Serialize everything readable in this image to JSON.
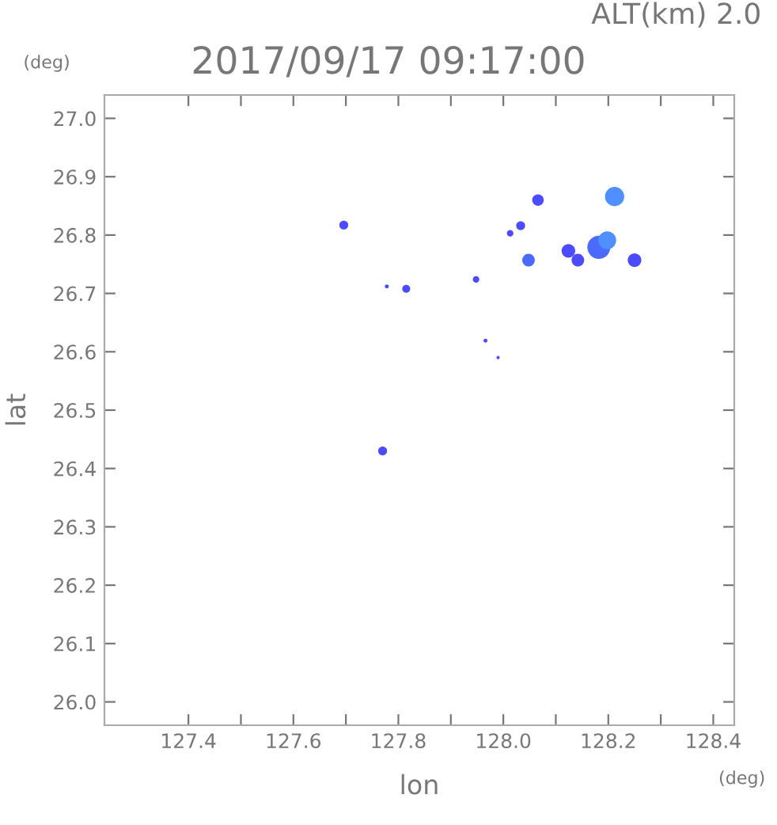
{
  "chart_data": {
    "type": "bubble",
    "title": "2017/09/17 09:17:00",
    "subtitle": "ALT(km) 2.0",
    "xlabel": "lon",
    "ylabel": "lat",
    "annotations": [
      "(deg)",
      "(deg)"
    ],
    "x": [
      127.696,
      127.778,
      127.815,
      127.948,
      127.966,
      127.99,
      128.066,
      128.033,
      128.013,
      128.048,
      128.124,
      128.142,
      128.182,
      128.198,
      128.212,
      128.25,
      127.77
    ],
    "values": [
      26.817,
      26.712,
      26.708,
      26.724,
      26.619,
      26.59,
      26.86,
      26.816,
      26.803,
      26.757,
      26.773,
      26.757,
      26.779,
      26.791,
      26.866,
      26.757,
      26.43
    ],
    "sizes": [
      0.15,
      0.03,
      0.12,
      0.08,
      0.03,
      0.02,
      0.25,
      0.15,
      0.08,
      0.3,
      0.35,
      0.3,
      1,
      0.6,
      0.7,
      0.35,
      0.15
    ],
    "colors": [
      "#4b4bff",
      "#4b4bff",
      "#4b4bff",
      "#4b4bff",
      "#4b4bff",
      "#4b4bff",
      "#4b4bff",
      "#4b4bff",
      "#4b4bff",
      "#4b6bff",
      "#4b4bff",
      "#4b4bff",
      "#4b6bff",
      "#4f8fff",
      "#4f8fff",
      "#4b4bff",
      "#4b4bff"
    ],
    "xlim": [
      127.24,
      128.44
    ],
    "ylim": [
      25.96,
      27.04
    ],
    "xticks": [
      127.4,
      {
        "value": 127.5,
        "label": null
      },
      127.6,
      {
        "value": 127.7,
        "label": null
      },
      127.8,
      {
        "value": 127.9,
        "label": null
      },
      {
        "value": 128.0,
        "label": "128.0"
      },
      {
        "value": 128.1,
        "label": null
      },
      128.2,
      {
        "value": 128.3,
        "label": null
      },
      128.4
    ],
    "yticks": [
      {
        "value": 26.0,
        "label": "26.0"
      },
      26.1,
      26.2,
      26.3,
      26.4,
      26.5,
      26.6,
      26.7,
      26.8,
      26.9,
      {
        "value": 27.0,
        "label": "27.0"
      }
    ],
    "grid": false,
    "legend": false
  }
}
